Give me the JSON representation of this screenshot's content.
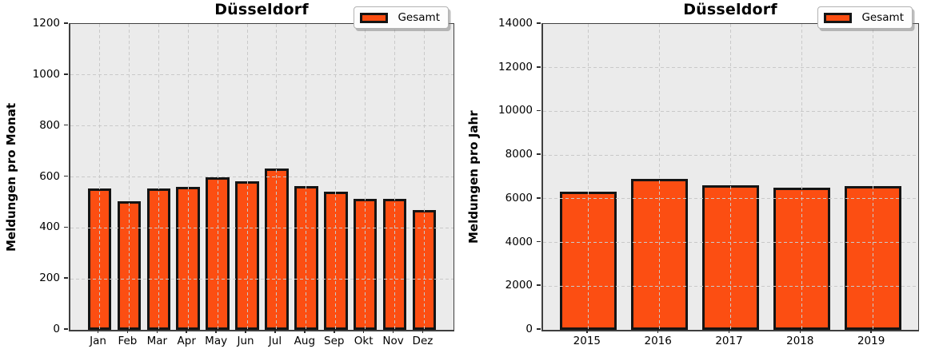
{
  "figure": {
    "background_color": "#ffffff",
    "plot_background_color": "#ebebeb",
    "grid_color": "#c9c9c9",
    "bar_color": "#fc4e12",
    "bar_edge_color": "#141414",
    "spine_color": "#3f3f3f",
    "text_color": "#000000"
  },
  "chart_data": [
    {
      "type": "bar",
      "title": "Düsseldorf",
      "ylabel": "Meldungen pro Monat",
      "xlabel": "",
      "categories": [
        "Jan",
        "Feb",
        "Mar",
        "Apr",
        "May",
        "Jun",
        "Jul",
        "Aug",
        "Sep",
        "Okt",
        "Nov",
        "Dez"
      ],
      "values": [
        555,
        505,
        555,
        560,
        598,
        582,
        632,
        565,
        542,
        513,
        514,
        471
      ],
      "ylim": [
        0,
        1200
      ],
      "ytick_step": 200,
      "bar_width_fraction": 0.8,
      "grid": true,
      "grid_style": "dashed",
      "legend": [
        "Gesamt"
      ],
      "legend_position": "upper right"
    },
    {
      "type": "bar",
      "title": "Düsseldorf",
      "ylabel": "Meldungen pro Jahr",
      "xlabel": "",
      "categories": [
        "2015",
        "2016",
        "2017",
        "2018",
        "2019"
      ],
      "values": [
        6330,
        6900,
        6620,
        6510,
        6590
      ],
      "ylim": [
        0,
        14000
      ],
      "ytick_step": 2000,
      "bar_width_fraction": 0.8,
      "grid": true,
      "grid_style": "dashed",
      "legend": [
        "Gesamt"
      ],
      "legend_position": "upper right"
    }
  ]
}
